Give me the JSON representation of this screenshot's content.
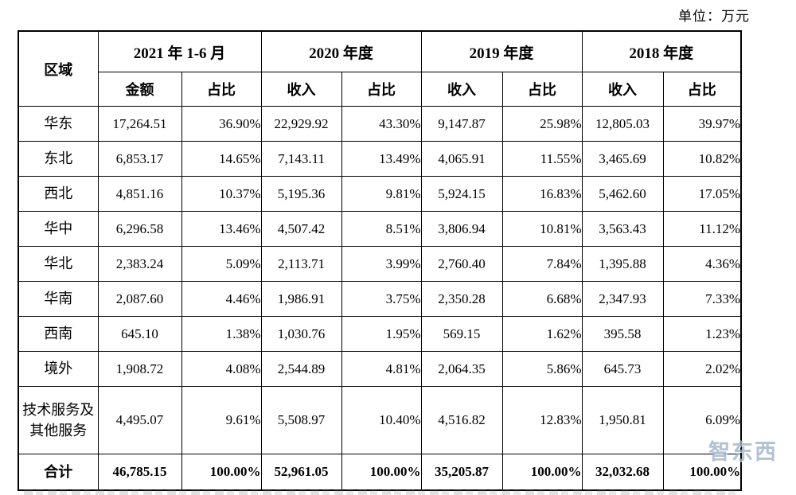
{
  "unit_label": "单位：万元",
  "watermark": "智东西",
  "table": {
    "region_header": "区域",
    "col_groups": [
      {
        "label": "2021 年 1-6 月",
        "sub": [
          "金额",
          "占比"
        ]
      },
      {
        "label": "2020 年度",
        "sub": [
          "收入",
          "占比"
        ]
      },
      {
        "label": "2019 年度",
        "sub": [
          "收入",
          "占比"
        ]
      },
      {
        "label": "2018 年度",
        "sub": [
          "收入",
          "占比"
        ]
      }
    ],
    "rows": [
      {
        "region": "华东",
        "values": [
          "17,264.51",
          "36.90%",
          "22,929.92",
          "43.30%",
          "9,147.87",
          "25.98%",
          "12,805.03",
          "39.97%"
        ]
      },
      {
        "region": "东北",
        "values": [
          "6,853.17",
          "14.65%",
          "7,143.11",
          "13.49%",
          "4,065.91",
          "11.55%",
          "3,465.69",
          "10.82%"
        ]
      },
      {
        "region": "西北",
        "values": [
          "4,851.16",
          "10.37%",
          "5,195.36",
          "9.81%",
          "5,924.15",
          "16.83%",
          "5,462.60",
          "17.05%"
        ]
      },
      {
        "region": "华中",
        "values": [
          "6,296.58",
          "13.46%",
          "4,507.42",
          "8.51%",
          "3,806.94",
          "10.81%",
          "3,563.43",
          "11.12%"
        ]
      },
      {
        "region": "华北",
        "values": [
          "2,383.24",
          "5.09%",
          "2,113.71",
          "3.99%",
          "2,760.40",
          "7.84%",
          "1,395.88",
          "4.36%"
        ]
      },
      {
        "region": "华南",
        "values": [
          "2,087.60",
          "4.46%",
          "1,986.91",
          "3.75%",
          "2,350.28",
          "6.68%",
          "2,347.93",
          "7.33%"
        ]
      },
      {
        "region": "西南",
        "values": [
          "645.10",
          "1.38%",
          "1,030.76",
          "1.95%",
          "569.15",
          "1.62%",
          "395.58",
          "1.23%"
        ]
      },
      {
        "region": "境外",
        "values": [
          "1,908.72",
          "4.08%",
          "2,544.89",
          "4.81%",
          "2,064.35",
          "5.86%",
          "645.73",
          "2.02%"
        ]
      },
      {
        "region": "技术服务及其他服务",
        "values": [
          "4,495.07",
          "9.61%",
          "5,508.97",
          "10.40%",
          "4,516.82",
          "12.83%",
          "1,950.81",
          "6.09%"
        ]
      }
    ],
    "total_row": {
      "region": "合计",
      "values": [
        "46,785.15",
        "100.00%",
        "52,961.05",
        "100.00%",
        "35,205.87",
        "100.00%",
        "32,032.68",
        "100.00%"
      ]
    }
  }
}
